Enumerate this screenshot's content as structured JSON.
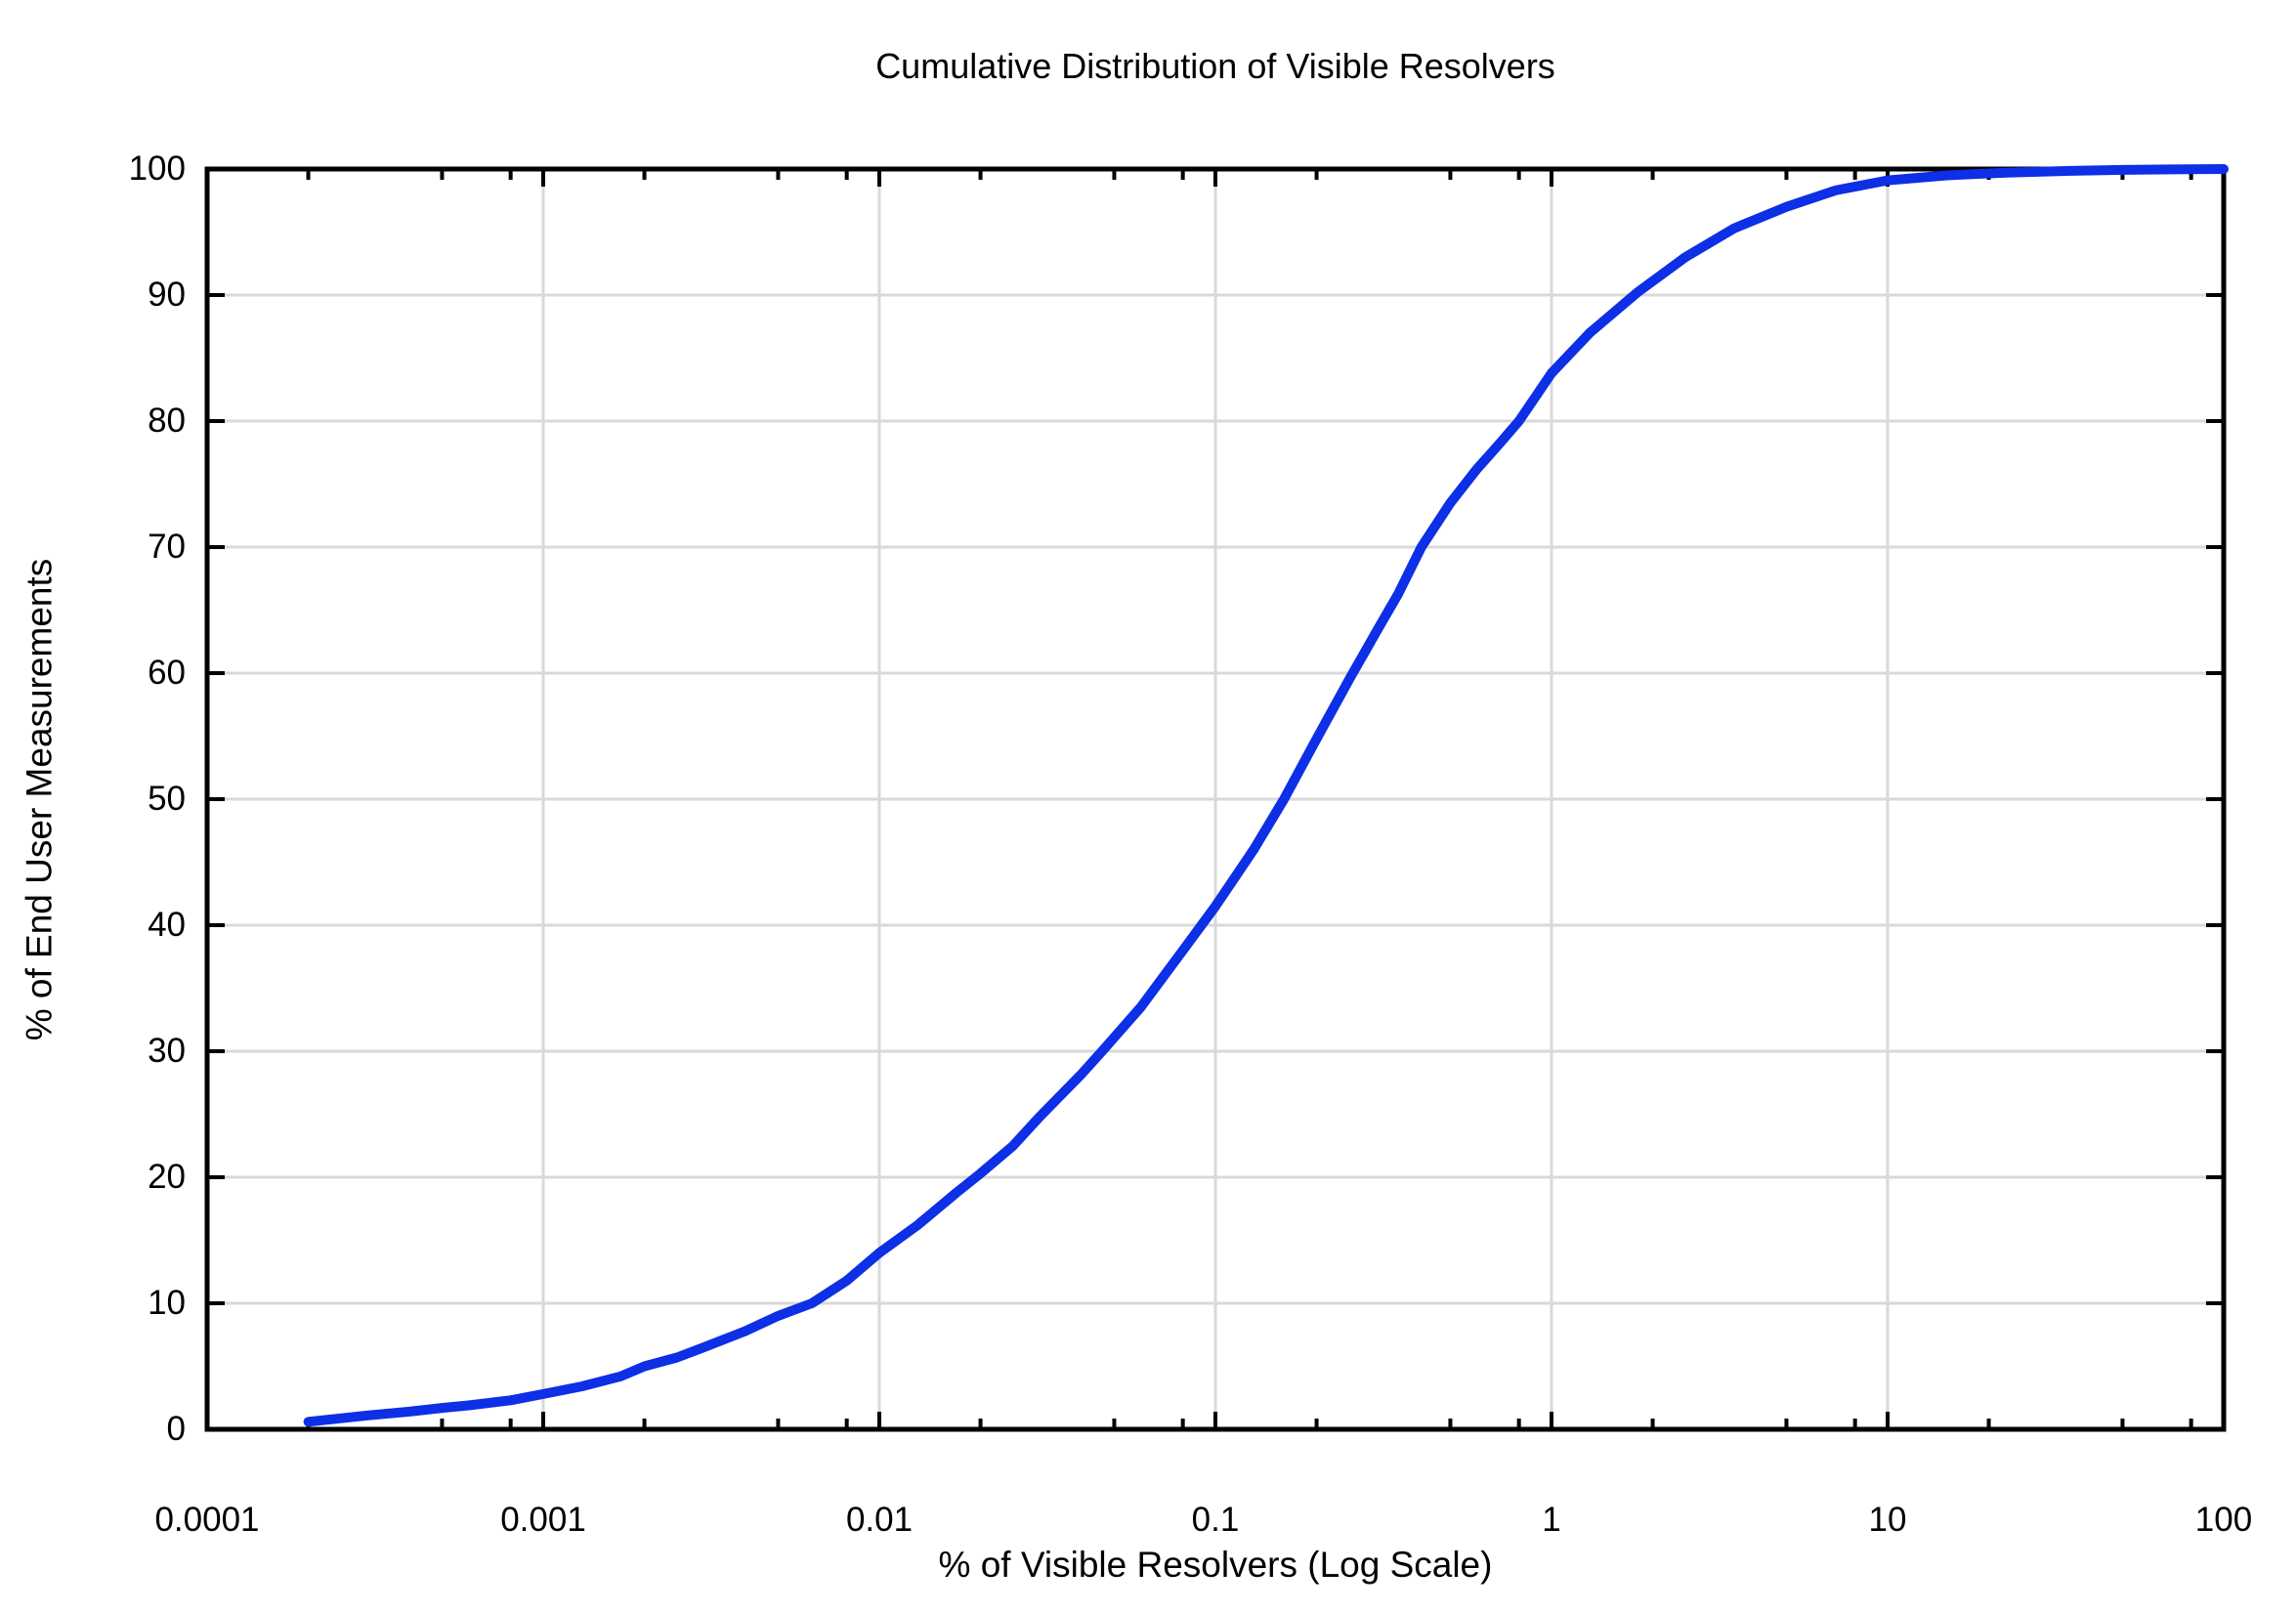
{
  "chart_data": {
    "type": "line",
    "title": "Cumulative Distribution of Visible Resolvers",
    "xlabel": "% of Visible Resolvers (Log Scale)",
    "ylabel": "% of End User Measurements",
    "x_scale": "log",
    "xlim": [
      0.0001,
      100
    ],
    "ylim": [
      0,
      100
    ],
    "grid": true,
    "legend_position": "none",
    "x_major_ticks": [
      0.0001,
      0.001,
      0.01,
      0.1,
      1,
      10,
      100
    ],
    "x_major_tick_labels": [
      "0.0001",
      "0.001",
      "0.01",
      "0.1",
      "1",
      "10",
      "100"
    ],
    "x_minor_tick_multipliers": [
      2,
      5,
      8
    ],
    "y_major_ticks": [
      0,
      10,
      20,
      30,
      40,
      50,
      60,
      70,
      80,
      90,
      100
    ],
    "y_major_tick_labels": [
      "0",
      "10",
      "20",
      "30",
      "40",
      "50",
      "60",
      "70",
      "80",
      "90",
      "100"
    ],
    "series": [
      {
        "name": "Cumulative distribution of visible resolvers",
        "color": "#0d2fe6",
        "points": [
          [
            0.0002,
            0.6
          ],
          [
            0.0003,
            1.1
          ],
          [
            0.0004,
            1.4
          ],
          [
            0.0005,
            1.7
          ],
          [
            0.0006,
            1.9
          ],
          [
            0.0008,
            2.3
          ],
          [
            0.001,
            2.8
          ],
          [
            0.0013,
            3.4
          ],
          [
            0.0017,
            4.2
          ],
          [
            0.002,
            5.0
          ],
          [
            0.0025,
            5.7
          ],
          [
            0.003,
            6.5
          ],
          [
            0.004,
            7.8
          ],
          [
            0.005,
            9.0
          ],
          [
            0.0063,
            10.0
          ],
          [
            0.008,
            11.8
          ],
          [
            0.01,
            14.0
          ],
          [
            0.013,
            16.2
          ],
          [
            0.017,
            18.8
          ],
          [
            0.02,
            20.3
          ],
          [
            0.025,
            22.5
          ],
          [
            0.03,
            24.8
          ],
          [
            0.04,
            28.2
          ],
          [
            0.046,
            30.0
          ],
          [
            0.06,
            33.5
          ],
          [
            0.08,
            38.0
          ],
          [
            0.1,
            41.5
          ],
          [
            0.13,
            46.0
          ],
          [
            0.16,
            50.0
          ],
          [
            0.2,
            54.8
          ],
          [
            0.25,
            59.5
          ],
          [
            0.3,
            63.2
          ],
          [
            0.35,
            66.3
          ],
          [
            0.41,
            70.0
          ],
          [
            0.5,
            73.5
          ],
          [
            0.6,
            76.2
          ],
          [
            0.7,
            78.2
          ],
          [
            0.8,
            80.0
          ],
          [
            1.0,
            83.8
          ],
          [
            1.3,
            87.0
          ],
          [
            1.8,
            90.2
          ],
          [
            2.5,
            93.0
          ],
          [
            3.5,
            95.3
          ],
          [
            5,
            97.0
          ],
          [
            7,
            98.3
          ],
          [
            10,
            99.1
          ],
          [
            15,
            99.5
          ],
          [
            22,
            99.7
          ],
          [
            35,
            99.85
          ],
          [
            50,
            99.93
          ],
          [
            70,
            99.97
          ],
          [
            100,
            100.0
          ]
        ]
      }
    ]
  },
  "styles": {
    "background": "#ffffff",
    "text_color": "#000000",
    "axis_color": "#000000",
    "grid_color": "#d9d9d9",
    "curve_color": "#0d2fe6"
  }
}
